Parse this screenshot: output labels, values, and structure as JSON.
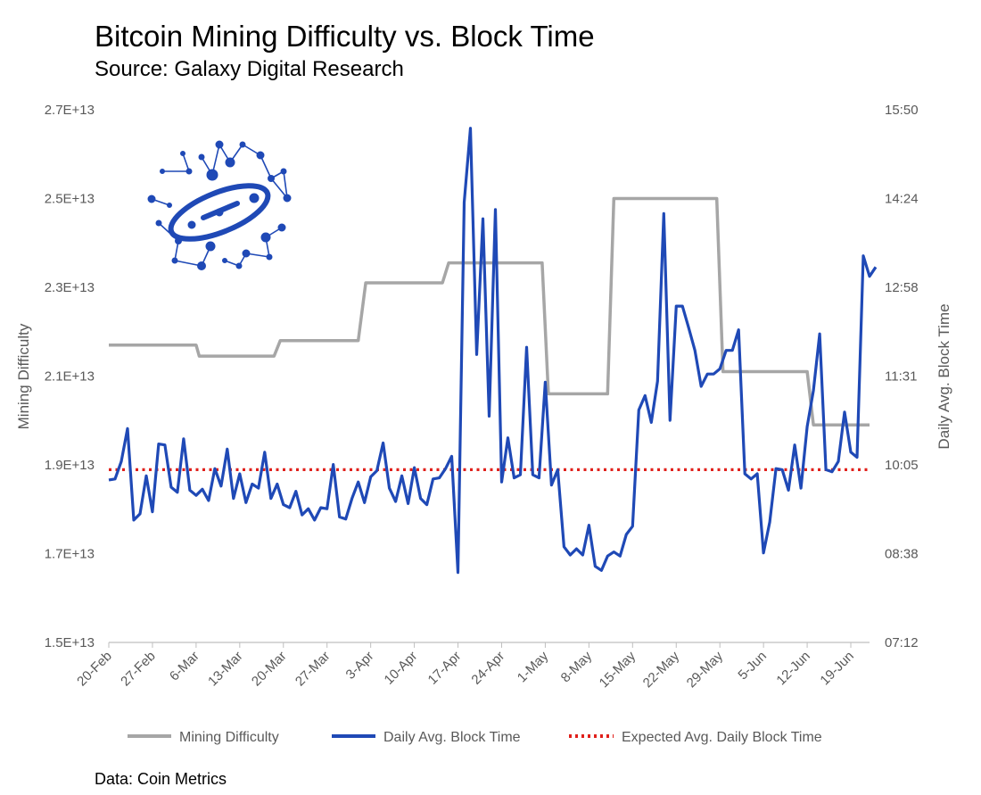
{
  "title": "Bitcoin Mining Difficulty vs. Block Time",
  "subtitle": "Source: Galaxy Digital Research",
  "footnote": "Data: Coin Metrics",
  "logo": {
    "icon": "galaxy-planet-network-icon",
    "color": "#1F49B6"
  },
  "colors": {
    "difficulty": "#A6A6A6",
    "block_time": "#1F49B6",
    "expected": "#E0201B",
    "axis": "#BFBFBF",
    "tick_text": "#595959"
  },
  "chart_data": {
    "type": "line",
    "title": "Bitcoin Mining Difficulty vs. Block Time",
    "xlabel": "",
    "ylabel": "Mining Difficulty",
    "y2label": "Daily Avg. Block Time",
    "ylim": [
      15000000000000.0,
      27000000000000.0
    ],
    "y_ticks": [
      "1.5E+13",
      "1.7E+13",
      "1.9E+13",
      "2.1E+13",
      "2.3E+13",
      "2.5E+13",
      "2.7E+13"
    ],
    "y2lim_minutes": [
      432,
      950
    ],
    "y2_ticks": [
      "07:12",
      "08:38",
      "10:05",
      "11:31",
      "12:58",
      "14:24",
      "15:50"
    ],
    "x_ticks": [
      "20-Feb",
      "27-Feb",
      "6-Mar",
      "13-Mar",
      "20-Mar",
      "27-Mar",
      "3-Apr",
      "10-Apr",
      "17-Apr",
      "24-Apr",
      "1-May",
      "8-May",
      "15-May",
      "22-May",
      "29-May",
      "5-Jun",
      "12-Jun",
      "19-Jun"
    ],
    "x_start_day": 0,
    "x_end_day": 122,
    "legend_position": "bottom",
    "series": [
      {
        "name": "Mining Difficulty",
        "axis": "left",
        "step": true,
        "points": [
          [
            0,
            21700000000000.0
          ],
          [
            14,
            21700000000000.0
          ],
          [
            14.5,
            21450000000000.0
          ],
          [
            26.5,
            21450000000000.0
          ],
          [
            27.5,
            21800000000000.0
          ],
          [
            40,
            21800000000000.0
          ],
          [
            41.2,
            23100000000000.0
          ],
          [
            53.5,
            23100000000000.0
          ],
          [
            54.5,
            23550000000000.0
          ],
          [
            69.5,
            23550000000000.0
          ],
          [
            70.5,
            20600000000000.0
          ],
          [
            80,
            20600000000000.0
          ],
          [
            81,
            25000000000000.0
          ],
          [
            97.5,
            25000000000000.0
          ],
          [
            98.5,
            21100000000000.0
          ],
          [
            112,
            21100000000000.0
          ],
          [
            113,
            19900000000000.0
          ],
          [
            122,
            19900000000000.0
          ]
        ]
      },
      {
        "name": "Daily Avg. Block Time",
        "axis": "right",
        "values_minutes": [
          590,
          591,
          608,
          640,
          551,
          557,
          594,
          559,
          625,
          624,
          583,
          578,
          630,
          580,
          575,
          581,
          570,
          601,
          584,
          620,
          572,
          596,
          568,
          586,
          582,
          617,
          572,
          586,
          566,
          563,
          579,
          556,
          562,
          551,
          563,
          562,
          605,
          554,
          552,
          572,
          588,
          568,
          593,
          599,
          626,
          582,
          569,
          594,
          567,
          602,
          572,
          566,
          591,
          592,
          601,
          613,
          500,
          860,
          932,
          712,
          844,
          652,
          853,
          588,
          631,
          592,
          595,
          719,
          595,
          592,
          685,
          585,
          600,
          525,
          517,
          523,
          517,
          546,
          506,
          502,
          516,
          520,
          516,
          537,
          545,
          658,
          672,
          646,
          686,
          849,
          648,
          759,
          759,
          738,
          716,
          681,
          693,
          693,
          698,
          716,
          716,
          736,
          596,
          591,
          596,
          519,
          549,
          601,
          600,
          580,
          624,
          582,
          642,
          677,
          732,
          600,
          598,
          608,
          656,
          617,
          612,
          808,
          788,
          797
        ]
      },
      {
        "name": "Expected Avg. Daily Block Time",
        "axis": "right",
        "constant_minutes": 600
      }
    ]
  }
}
